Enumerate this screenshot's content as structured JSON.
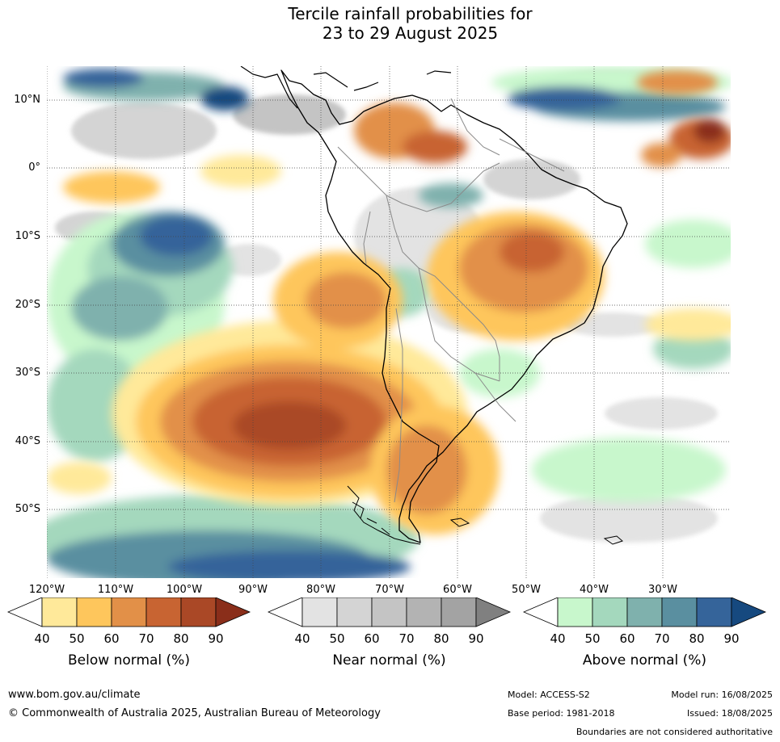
{
  "title": {
    "line1": "Tercile rainfall probabilities for",
    "line2": "23 to 29 August 2025"
  },
  "map": {
    "lat_labels": [
      "10°N",
      "0°",
      "10°S",
      "20°S",
      "30°S",
      "40°S",
      "50°S"
    ],
    "lon_labels": [
      "120°W",
      "110°W",
      "100°W",
      "90°W",
      "80°W",
      "70°W",
      "60°W",
      "50°W",
      "40°W",
      "30°W"
    ],
    "colors": {
      "ocean_bg": "#ffffff",
      "land_outline": "#000000",
      "border": "#8a8a8a",
      "grid": "#444444"
    }
  },
  "colorbars": [
    {
      "label": "Below normal (%)",
      "ticks": [
        "40",
        "50",
        "60",
        "70",
        "80",
        "90"
      ],
      "colors": [
        "#ffffff",
        "#ffe99a",
        "#fec65c",
        "#e29048",
        "#c86432",
        "#aa4826",
        "#8a2e1a"
      ]
    },
    {
      "label": "Near normal (%)",
      "ticks": [
        "40",
        "50",
        "60",
        "70",
        "80",
        "90"
      ],
      "colors": [
        "#ffffff",
        "#e3e3e3",
        "#d4d4d4",
        "#c4c4c4",
        "#b3b3b3",
        "#a3a3a3",
        "#808080"
      ]
    },
    {
      "label": "Above normal (%)",
      "ticks": [
        "40",
        "50",
        "60",
        "70",
        "80",
        "90"
      ],
      "colors": [
        "#ffffff",
        "#c8f7cc",
        "#a4d8bd",
        "#7fb1ad",
        "#5a8fa0",
        "#35649a",
        "#16497f"
      ]
    }
  ],
  "footer": {
    "website": "www.bom.gov.au/climate",
    "copyright": "© Commonwealth of Australia 2025, Australian Bureau of Meteorology",
    "model": "Model: ACCESS-S2",
    "base_period": "Base period: 1981-2018",
    "model_run": "Model run: 16/08/2025",
    "issued": "Issued: 18/08/2025",
    "disclaimer": "Boundaries are not considered authoritative"
  }
}
